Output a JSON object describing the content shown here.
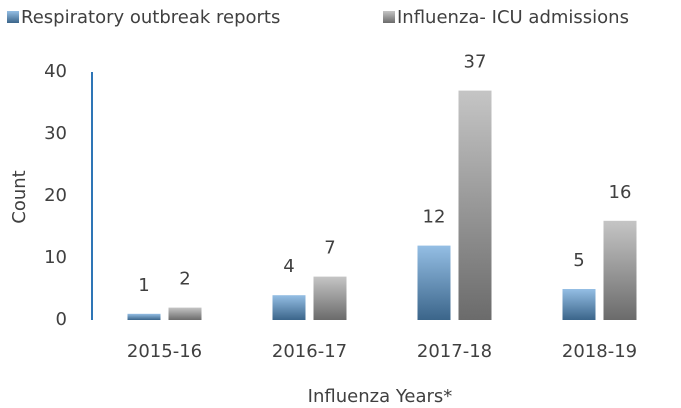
{
  "chart_data": {
    "type": "bar",
    "x_label": "Influenza Years*",
    "y_label": "Count",
    "categories": [
      "2015-16",
      "2016-17",
      "2017-18",
      "2018-19"
    ],
    "series": [
      {
        "name": "Respiratory outbreak reports",
        "color": "#5b9bd5",
        "values": [
          1,
          4,
          12,
          5
        ]
      },
      {
        "name": "Influenza- ICU admissions",
        "color": "#a5a5a5",
        "values": [
          2,
          7,
          37,
          16
        ]
      }
    ],
    "ylim": [
      0,
      40
    ],
    "yticks": [
      0,
      10,
      20,
      30,
      40
    ],
    "grid": false,
    "legend": "top"
  }
}
